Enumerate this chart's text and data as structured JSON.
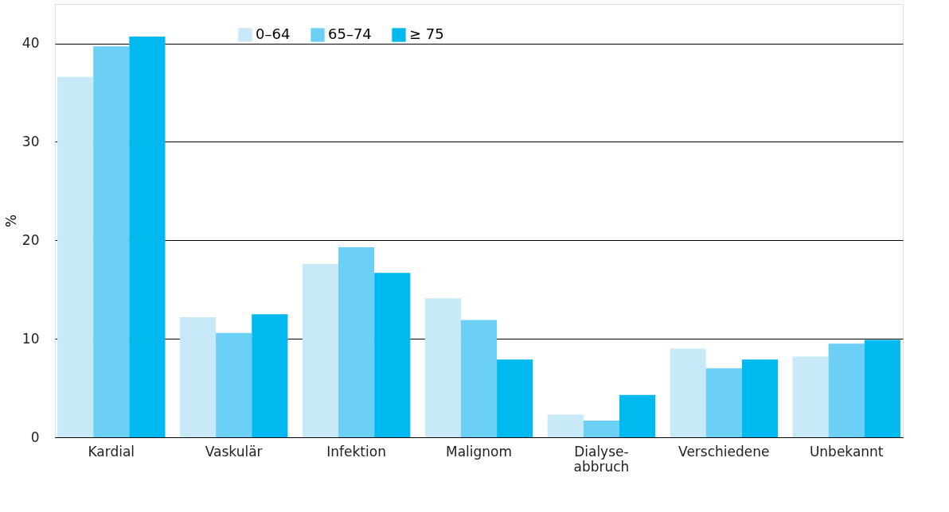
{
  "chart_data": {
    "type": "bar",
    "ylabel": "%",
    "categories": [
      "Kardial",
      "Vaskulär",
      "Infektion",
      "Malignom",
      "Dialyse-\nabbruch",
      "Verschiedene",
      "Unbekannt"
    ],
    "series": [
      {
        "name": "0–64",
        "color": "#c7e9f8",
        "values": [
          36.6,
          12.2,
          17.6,
          14.1,
          2.3,
          9.0,
          8.2
        ]
      },
      {
        "name": "65–74",
        "color": "#6ccff5",
        "values": [
          39.7,
          10.6,
          19.3,
          11.9,
          1.7,
          7.0,
          9.5
        ]
      },
      {
        "name": "≥ 75",
        "color": "#00b9ef",
        "values": [
          40.7,
          12.5,
          16.7,
          7.9,
          4.3,
          7.9,
          9.9
        ]
      }
    ],
    "ylim": [
      0,
      44
    ],
    "yticks": [
      0,
      10,
      20,
      30,
      40
    ],
    "grid": "y",
    "legend": "top"
  }
}
